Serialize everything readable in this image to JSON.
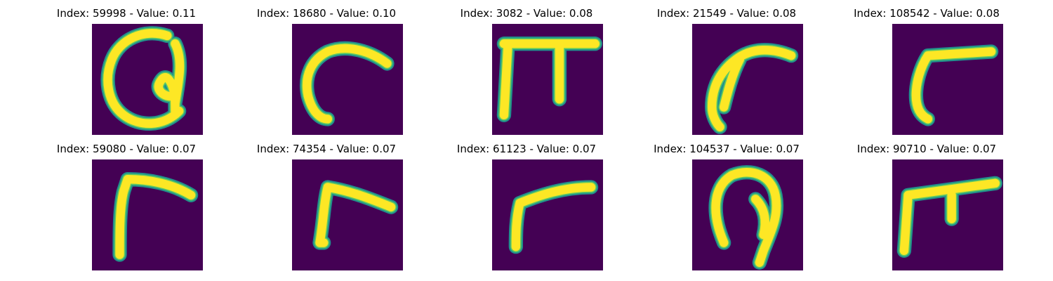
{
  "colors": {
    "background": "#440154",
    "stroke": "#fde725",
    "edge": "#21918c",
    "mid": "#5ec962"
  },
  "grid": [
    {
      "title": "Index: 59998 - Value: 0.11",
      "glyph": "loop-with-inner-curl"
    },
    {
      "title": "Index: 18680 - Value: 0.10",
      "glyph": "hook-curve"
    },
    {
      "title": "Index: 3082 - Value: 0.08",
      "glyph": "pi-shape"
    },
    {
      "title": "Index: 21549 - Value: 0.08",
      "glyph": "swoosh-hook"
    },
    {
      "title": "Index: 108542 - Value: 0.08",
      "glyph": "angled-L"
    },
    {
      "title": "Index: 59080 - Value: 0.07",
      "glyph": "angled-L"
    },
    {
      "title": "Index: 74354 - Value: 0.07",
      "glyph": "angled-L"
    },
    {
      "title": "Index: 61123 - Value: 0.07",
      "glyph": "angled-L"
    },
    {
      "title": "Index: 104537 - Value: 0.07",
      "glyph": "loop-with-stem"
    },
    {
      "title": "Index: 90710 - Value: 0.07",
      "glyph": "gamma-with-tick"
    }
  ]
}
